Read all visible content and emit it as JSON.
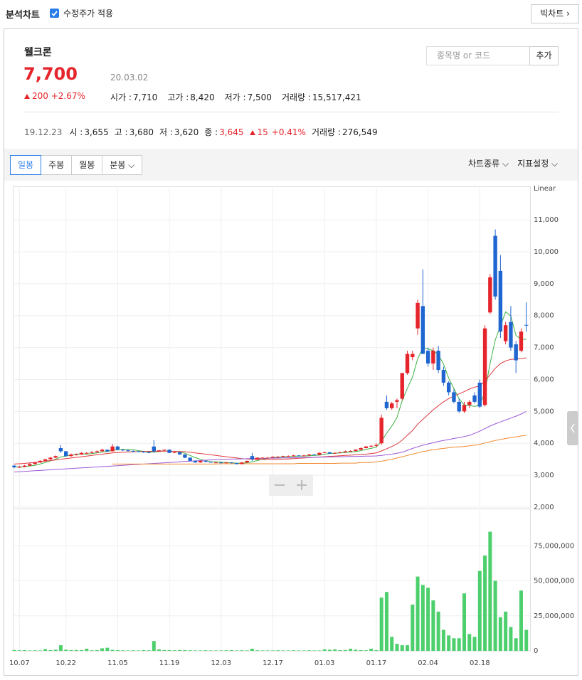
{
  "header": {
    "title": "분석차트",
    "checkbox": "수정주가 적용",
    "button": "빅차트"
  },
  "stock": {
    "name": "웰크론",
    "price": "7,700",
    "date": "20.03.02",
    "change": "200",
    "change_pct": "+2.67%",
    "quotes": [
      {
        "label": "시가 :",
        "value": "7,710"
      },
      {
        "label": "고가 :",
        "value": "8,420"
      },
      {
        "label": "저가 :",
        "value": "7,500"
      },
      {
        "label": "거래량 :",
        "value": "15,517,421"
      }
    ],
    "search_placeholder": "종목명 or 코드",
    "add": "추가"
  },
  "hover": {
    "date": "19.12.23",
    "items": [
      {
        "label": "시 :",
        "value": "3,655"
      },
      {
        "label": "고 :",
        "value": "3,680"
      },
      {
        "label": "저 :",
        "value": "3,620"
      },
      {
        "label": "종 :",
        "value": "3,645"
      }
    ],
    "change": "15",
    "change_pct": "+0.41%",
    "volume_label": "거래량 :",
    "volume": "276,549"
  },
  "toolbar": {
    "tabs": [
      "일봉",
      "주봉",
      "월봉",
      "분봉"
    ],
    "right": [
      "차트종류",
      "지표설정"
    ]
  },
  "chart_data": {
    "type": "candlestick",
    "scale_label": "Linear",
    "up_color": "#e5242b",
    "down_color": "#1f66d1",
    "grid": true,
    "categories": [
      null,
      "10.07",
      null,
      null,
      null,
      null,
      null,
      null,
      null,
      null,
      "10.22",
      null,
      null,
      null,
      null,
      null,
      null,
      null,
      null,
      null,
      "11.05",
      null,
      null,
      null,
      null,
      null,
      null,
      null,
      null,
      null,
      "11.19",
      null,
      null,
      null,
      null,
      null,
      null,
      null,
      null,
      null,
      "12.03",
      null,
      null,
      null,
      null,
      null,
      null,
      null,
      null,
      null,
      "12.17",
      null,
      null,
      null,
      null,
      null,
      null,
      null,
      null,
      null,
      "01.03",
      null,
      null,
      null,
      null,
      null,
      null,
      null,
      null,
      null,
      "01.17",
      null,
      null,
      null,
      null,
      null,
      null,
      null,
      null,
      null,
      "02.04",
      null,
      null,
      null,
      null,
      null,
      null,
      null,
      null,
      null,
      "02.18",
      null,
      null,
      null,
      null,
      null,
      null,
      null,
      null,
      null
    ],
    "ohlc": [
      [
        3300,
        3320,
        3220,
        3250
      ],
      [
        3250,
        3300,
        3230,
        3260
      ],
      [
        3260,
        3320,
        3250,
        3300
      ],
      [
        3300,
        3380,
        3290,
        3350
      ],
      [
        3350,
        3420,
        3340,
        3400
      ],
      [
        3400,
        3470,
        3390,
        3450
      ],
      [
        3450,
        3520,
        3440,
        3500
      ],
      [
        3500,
        3580,
        3480,
        3550
      ],
      [
        3550,
        3620,
        3530,
        3600
      ],
      [
        3850,
        3950,
        3700,
        3750
      ],
      [
        3750,
        3760,
        3580,
        3600
      ],
      [
        3600,
        3680,
        3580,
        3650
      ],
      [
        3650,
        3680,
        3620,
        3650
      ],
      [
        3650,
        3720,
        3640,
        3700
      ],
      [
        3700,
        3720,
        3670,
        3700
      ],
      [
        3700,
        3760,
        3690,
        3720
      ],
      [
        3720,
        3780,
        3700,
        3750
      ],
      [
        3750,
        3830,
        3740,
        3800
      ],
      [
        3800,
        3810,
        3730,
        3750
      ],
      [
        3750,
        3980,
        3740,
        3900
      ],
      [
        3900,
        3920,
        3780,
        3800
      ],
      [
        3800,
        3820,
        3760,
        3780
      ],
      [
        3780,
        3800,
        3740,
        3760
      ],
      [
        3760,
        3780,
        3730,
        3750
      ],
      [
        3750,
        3770,
        3720,
        3740
      ],
      [
        3740,
        3760,
        3700,
        3720
      ],
      [
        3720,
        3740,
        3690,
        3700
      ],
      [
        3900,
        4100,
        3700,
        3750
      ],
      [
        3750,
        3790,
        3730,
        3780
      ],
      [
        3780,
        3810,
        3760,
        3800
      ],
      [
        3800,
        3810,
        3690,
        3700
      ],
      [
        3700,
        3740,
        3690,
        3720
      ],
      [
        3720,
        3730,
        3640,
        3650
      ],
      [
        3650,
        3660,
        3540,
        3550
      ],
      [
        3550,
        3560,
        3440,
        3450
      ],
      [
        3450,
        3460,
        3390,
        3400
      ],
      [
        3400,
        3470,
        3390,
        3450
      ],
      [
        3450,
        3460,
        3410,
        3420
      ],
      [
        3420,
        3430,
        3390,
        3400
      ],
      [
        3400,
        3420,
        3390,
        3400
      ],
      [
        3400,
        3410,
        3370,
        3380
      ],
      [
        3380,
        3410,
        3370,
        3400
      ],
      [
        3400,
        3410,
        3370,
        3380
      ],
      [
        3380,
        3390,
        3340,
        3350
      ],
      [
        3350,
        3410,
        3340,
        3400
      ],
      [
        3400,
        3460,
        3390,
        3450
      ],
      [
        3600,
        3700,
        3450,
        3500
      ],
      [
        3500,
        3560,
        3490,
        3550
      ],
      [
        3550,
        3570,
        3530,
        3550
      ],
      [
        3550,
        3570,
        3530,
        3550
      ],
      [
        3550,
        3590,
        3540,
        3580
      ],
      [
        3580,
        3600,
        3560,
        3580
      ],
      [
        3580,
        3610,
        3570,
        3600
      ],
      [
        3600,
        3620,
        3580,
        3600
      ],
      [
        3600,
        3640,
        3590,
        3620
      ],
      [
        3620,
        3630,
        3590,
        3600
      ],
      [
        3600,
        3640,
        3590,
        3620
      ],
      [
        3620,
        3670,
        3610,
        3650
      ],
      [
        3650,
        3660,
        3620,
        3640
      ],
      [
        3640,
        3720,
        3630,
        3700
      ],
      [
        3700,
        3740,
        3690,
        3720
      ],
      [
        3720,
        3730,
        3670,
        3680
      ],
      [
        3680,
        3720,
        3670,
        3700
      ],
      [
        3700,
        3740,
        3690,
        3720
      ],
      [
        3720,
        3770,
        3710,
        3750
      ],
      [
        3750,
        3780,
        3740,
        3760
      ],
      [
        3760,
        3820,
        3750,
        3800
      ],
      [
        3800,
        3870,
        3790,
        3850
      ],
      [
        3850,
        3920,
        3840,
        3900
      ],
      [
        3900,
        3950,
        3880,
        3920
      ],
      [
        3920,
        4000,
        3880,
        3950
      ],
      [
        4000,
        4900,
        3950,
        4800
      ],
      [
        5300,
        5500,
        5050,
        5100
      ],
      [
        5100,
        5300,
        5050,
        5250
      ],
      [
        5300,
        5400,
        5100,
        5350
      ],
      [
        5400,
        6200,
        5350,
        6200
      ],
      [
        6200,
        6900,
        6150,
        6800
      ],
      [
        6700,
        6900,
        6600,
        6800
      ],
      [
        7600,
        8500,
        7400,
        8400
      ],
      [
        8300,
        9450,
        6800,
        6800
      ],
      [
        6900,
        7000,
        6400,
        6500
      ],
      [
        6500,
        7000,
        6300,
        6900
      ],
      [
        6900,
        7050,
        6200,
        6300
      ],
      [
        6300,
        6400,
        5800,
        5900
      ],
      [
        5900,
        5950,
        5500,
        5600
      ],
      [
        5600,
        5700,
        5250,
        5300
      ],
      [
        5300,
        5400,
        4950,
        5000
      ],
      [
        5000,
        5300,
        4950,
        5200
      ],
      [
        5200,
        5350,
        5100,
        5300
      ],
      [
        5500,
        5600,
        5250,
        5300
      ],
      [
        5900,
        6000,
        5100,
        5150
      ],
      [
        5200,
        7700,
        5150,
        7600
      ],
      [
        8100,
        9300,
        8050,
        9200
      ],
      [
        10500,
        10700,
        8500,
        8600
      ],
      [
        9400,
        9900,
        7300,
        7500
      ],
      [
        7200,
        7800,
        7100,
        7700
      ],
      [
        7800,
        8300,
        6900,
        7000
      ],
      [
        7100,
        7200,
        6200,
        6600
      ],
      [
        6900,
        7600,
        6850,
        7500
      ],
      [
        7710,
        8420,
        7500,
        7700
      ]
    ],
    "series": [
      {
        "color": "#3cb043",
        "values": [
          3260,
          3260,
          3270,
          3290,
          3310,
          3350,
          3400,
          3450,
          3500,
          3570,
          3600,
          3630,
          3660,
          3670,
          3660,
          3680,
          3700,
          3730,
          3740,
          3780,
          3800,
          3810,
          3810,
          3800,
          3770,
          3750,
          3730,
          3730,
          3740,
          3760,
          3750,
          3750,
          3730,
          3690,
          3620,
          3550,
          3500,
          3460,
          3420,
          3420,
          3410,
          3400,
          3390,
          3380,
          3380,
          3390,
          3420,
          3460,
          3500,
          3530,
          3550,
          3560,
          3570,
          3580,
          3590,
          3600,
          3600,
          3610,
          3620,
          3630,
          3660,
          3680,
          3690,
          3700,
          3710,
          3720,
          3740,
          3770,
          3810,
          3840,
          3880,
          4060,
          4320,
          4540,
          4810,
          5340,
          5720,
          6080,
          6650,
          7000,
          6960,
          6900,
          6780,
          6480,
          6040,
          5720,
          5400,
          5200,
          5180,
          5160,
          5190,
          5620,
          6500,
          7240,
          7670,
          8120,
          7990,
          7380,
          7260,
          7260
        ]
      },
      {
        "color": "#e0383c",
        "values": [
          3350,
          3360,
          3370,
          3385,
          3400,
          3420,
          3440,
          3460,
          3480,
          3500,
          3520,
          3540,
          3560,
          3580,
          3600,
          3620,
          3640,
          3660,
          3680,
          3700,
          3710,
          3720,
          3730,
          3735,
          3740,
          3745,
          3750,
          3750,
          3752,
          3755,
          3755,
          3750,
          3745,
          3735,
          3720,
          3700,
          3680,
          3660,
          3640,
          3620,
          3600,
          3580,
          3560,
          3540,
          3520,
          3510,
          3500,
          3495,
          3490,
          3490,
          3495,
          3500,
          3505,
          3510,
          3520,
          3530,
          3540,
          3550,
          3560,
          3570,
          3580,
          3590,
          3600,
          3610,
          3620,
          3630,
          3640,
          3650,
          3660,
          3680,
          3700,
          3760,
          3830,
          3900,
          3980,
          4100,
          4250,
          4400,
          4600,
          4750,
          4900,
          5050,
          5180,
          5300,
          5400,
          5480,
          5550,
          5620,
          5700,
          5760,
          5800,
          5950,
          6150,
          6350,
          6500,
          6580,
          6630,
          6640,
          6650,
          6680
        ]
      },
      {
        "color": "#9b59d6",
        "values": [
          3100,
          3110,
          3120,
          3130,
          3140,
          3150,
          3160,
          3170,
          3180,
          3190,
          3200,
          3210,
          3220,
          3230,
          3240,
          3250,
          3260,
          3270,
          3280,
          3290,
          3300,
          3310,
          3320,
          3330,
          3340,
          3350,
          3360,
          3370,
          3380,
          3390,
          3400,
          3410,
          3420,
          3430,
          3440,
          3450,
          3460,
          3470,
          3480,
          3490,
          3500,
          3503,
          3507,
          3510,
          3514,
          3517,
          3521,
          3524,
          3528,
          3531,
          3535,
          3538,
          3541,
          3545,
          3548,
          3552,
          3555,
          3559,
          3562,
          3566,
          3569,
          3572,
          3576,
          3579,
          3583,
          3586,
          3590,
          3593,
          3597,
          3600,
          3605,
          3620,
          3640,
          3660,
          3690,
          3720,
          3780,
          3840,
          3890,
          3940,
          3980,
          4020,
          4060,
          4090,
          4120,
          4150,
          4180,
          4210,
          4250,
          4310,
          4380,
          4460,
          4540,
          4610,
          4670,
          4730,
          4790,
          4850,
          4920,
          5000
        ]
      },
      {
        "color": "#f08a30",
        "values": [
          null,
          null,
          null,
          null,
          null,
          null,
          null,
          null,
          null,
          null,
          null,
          null,
          null,
          null,
          null,
          null,
          null,
          null,
          null,
          3350,
          3350,
          3350,
          3350,
          3350,
          3350,
          3350,
          3350,
          3350,
          3350,
          3350,
          3350,
          3350,
          3350,
          3350,
          3350,
          3350,
          3350,
          3350,
          3350,
          3350,
          3360,
          3360,
          3360,
          3360,
          3360,
          3360,
          3360,
          3360,
          3360,
          3360,
          3360,
          3360,
          3360,
          3360,
          3360,
          3370,
          3370,
          3370,
          3370,
          3370,
          3370,
          3370,
          3370,
          3380,
          3380,
          3380,
          3380,
          3400,
          3400,
          3400,
          3420,
          3440,
          3470,
          3500,
          3540,
          3580,
          3620,
          3660,
          3700,
          3740,
          3770,
          3800,
          3820,
          3840,
          3860,
          3880,
          3890,
          3900,
          3920,
          3940,
          3970,
          4010,
          4050,
          4090,
          4120,
          4150,
          4180,
          4200,
          4230,
          4250
        ]
      }
    ],
    "ylim": [
      2000,
      12050
    ],
    "yticks": [
      {
        "value": 2000,
        "label": "2,000"
      },
      {
        "value": 3000,
        "label": "3,000"
      },
      {
        "value": 4000,
        "label": "4,000"
      },
      {
        "value": 5000,
        "label": "5,000"
      },
      {
        "value": 6000,
        "label": "6,000"
      },
      {
        "value": 7000,
        "label": "7,000"
      },
      {
        "value": 8000,
        "label": "8,000"
      },
      {
        "value": 9000,
        "label": "9,000"
      },
      {
        "value": 10000,
        "label": "10,000"
      },
      {
        "value": 11000,
        "label": "11,000"
      }
    ],
    "volume_color": "#4ccf6c",
    "volume": [
      600000,
      400000,
      500000,
      300000,
      400000,
      300000,
      1200000,
      500000,
      800000,
      4000000,
      800000,
      500000,
      600000,
      500000,
      1500000,
      400000,
      500000,
      1800000,
      2200000,
      700000,
      500000,
      400000,
      300000,
      400000,
      300000,
      500000,
      400000,
      7000000,
      1000000,
      600000,
      500000,
      400000,
      600000,
      500000,
      400000,
      300000,
      300000,
      400000,
      300000,
      300000,
      300000,
      400000,
      500000,
      300000,
      400000,
      300000,
      1500000,
      400000,
      300000,
      300000,
      300000,
      400000,
      300000,
      300000,
      400000,
      300000,
      300000,
      400000,
      300000,
      300000,
      1000000,
      800000,
      1000000,
      500000,
      600000,
      1500000,
      800000,
      500000,
      400000,
      1500000,
      500000,
      38000000,
      42000000,
      10000000,
      5000000,
      4000000,
      4000000,
      33000000,
      53000000,
      47000000,
      45000000,
      36000000,
      28000000,
      15000000,
      11000000,
      9000000,
      9000000,
      41000000,
      12000000,
      10000000,
      57000000,
      68000000,
      85000000,
      50000000,
      24000000,
      28000000,
      17000000,
      9000000,
      43000000,
      15000000
    ],
    "vlim": [
      0,
      100000000
    ],
    "vticks": [
      0,
      {
        "value": 25000000,
        "label": "25,000,000"
      },
      {
        "value": 50000000,
        "label": "50,000,000"
      },
      {
        "value": 75000000,
        "label": "75,000,000"
      }
    ]
  }
}
